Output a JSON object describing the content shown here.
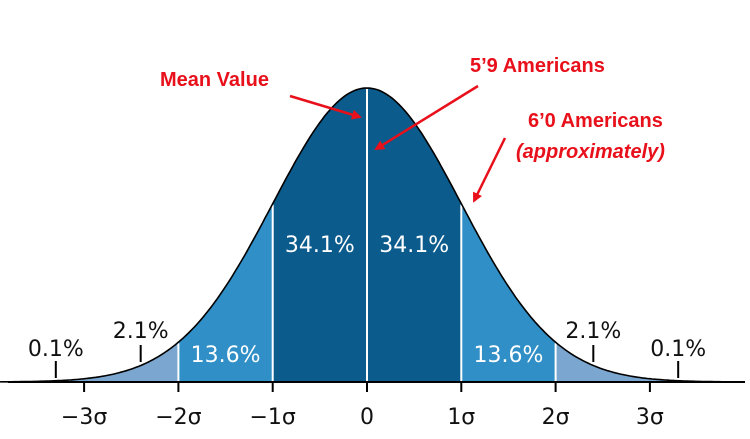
{
  "chart_data": {
    "type": "area",
    "title": "",
    "xlabel": "",
    "ylabel": "",
    "distribution": "normal",
    "x_range": [
      -3.9,
      4.0
    ],
    "x_ticks": [
      {
        "value": -3,
        "label": "−3σ"
      },
      {
        "value": -2,
        "label": "−2σ"
      },
      {
        "value": -1,
        "label": "−1σ"
      },
      {
        "value": 0,
        "label": "0"
      },
      {
        "value": 1,
        "label": "1σ"
      },
      {
        "value": 2,
        "label": "2σ"
      },
      {
        "value": 3,
        "label": "3σ"
      }
    ],
    "regions": [
      {
        "from": -3.9,
        "to": -2,
        "color": "#7aa6cf"
      },
      {
        "from": -2,
        "to": -1,
        "color": "#2f8fc6"
      },
      {
        "from": -1,
        "to": 1,
        "color": "#0b5b8c"
      },
      {
        "from": 1,
        "to": 2,
        "color": "#2f8fc6"
      },
      {
        "from": 2,
        "to": 4.0,
        "color": "#7aa6cf"
      }
    ],
    "boundaries": [
      -2,
      -1,
      0,
      1,
      2
    ],
    "percentages": [
      {
        "label": "0.1%",
        "x": -3.3,
        "marker_x": -3.3
      },
      {
        "label": "2.1%",
        "x": -2.4,
        "marker_x": -2.4
      },
      {
        "label": "13.6%",
        "x": -1.5
      },
      {
        "label": "34.1%",
        "x": -0.5
      },
      {
        "label": "34.1%",
        "x": 0.5
      },
      {
        "label": "13.6%",
        "x": 1.5
      },
      {
        "label": "2.1%",
        "x": 2.4,
        "marker_x": 2.4
      },
      {
        "label": "0.1%",
        "x": 3.3,
        "marker_x": 3.3
      }
    ],
    "annotations": [
      {
        "text": "Mean Value",
        "points_to_x": 0
      },
      {
        "text": "5’9 Americans",
        "points_to_x": 0
      },
      {
        "text_line1": "6’0 Americans",
        "text_line2": "(approximately)",
        "points_to_x": 1
      }
    ],
    "colors": {
      "tail": "#7aa6cf",
      "two_sigma": "#2f8fc6",
      "one_sigma": "#0b5b8c",
      "annotation": "#e8101a"
    }
  }
}
